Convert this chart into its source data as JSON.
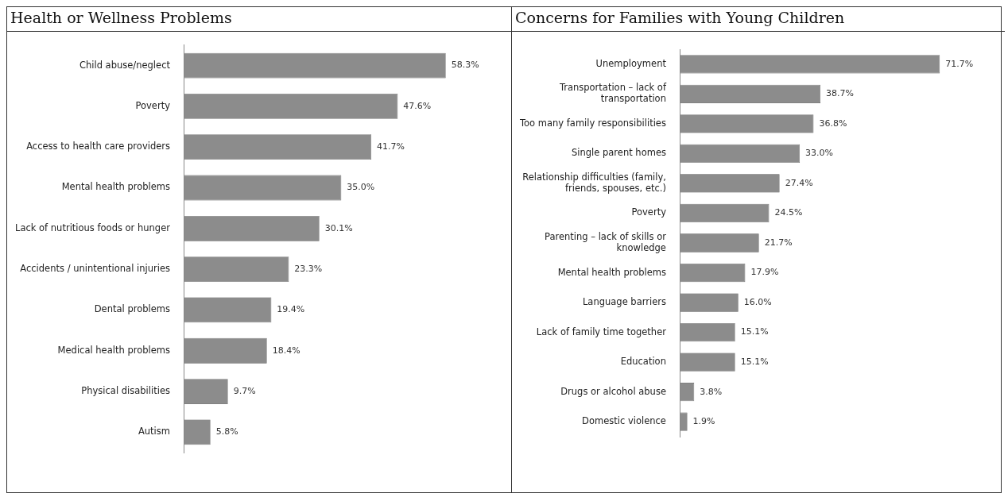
{
  "chart_data": [
    {
      "type": "bar",
      "orientation": "horizontal",
      "title": "Health or Wellness Problems",
      "color": "#8c8c8c",
      "categories": [
        "Child abuse/neglect",
        "Poverty",
        "Access to health care providers",
        "Mental health problems",
        "Lack of nutritious foods or hunger",
        "Accidents / unintentional injuries",
        "Dental problems",
        "Medical health problems",
        "Physical disabilities",
        "Autism"
      ],
      "values": [
        58.3,
        47.6,
        41.7,
        35.0,
        30.1,
        23.3,
        19.4,
        18.4,
        9.7,
        5.8
      ],
      "value_labels": [
        "58.3%",
        "47.6%",
        "41.7%",
        "35.0%",
        "30.1%",
        "23.3%",
        "19.4%",
        "18.4%",
        "9.7%",
        "5.8%"
      ]
    },
    {
      "type": "bar",
      "orientation": "horizontal",
      "title": "Concerns for Families with Young Children",
      "color": "#8c8c8c",
      "categories": [
        "Unemployment",
        "Transportation – lack of transportation",
        "Too many family responsibilities",
        "Single parent homes",
        "Relationship difficulties (family, friends, spouses, etc.)",
        "Poverty",
        "Parenting – lack of skills or knowledge",
        "Mental health problems",
        "Language barriers",
        "Lack of family time together",
        "Education",
        "Drugs or alcohol abuse",
        "Domestic violence"
      ],
      "values": [
        71.7,
        38.7,
        36.8,
        33.0,
        27.4,
        24.5,
        21.7,
        17.9,
        16.0,
        15.1,
        15.1,
        3.8,
        1.9
      ],
      "value_labels": [
        "71.7%",
        "38.7%",
        "36.8%",
        "33.0%",
        "27.4%",
        "24.5%",
        "21.7%",
        "17.9%",
        "16.0%",
        "15.1%",
        "15.1%",
        "3.8%",
        "1.9%"
      ]
    }
  ]
}
